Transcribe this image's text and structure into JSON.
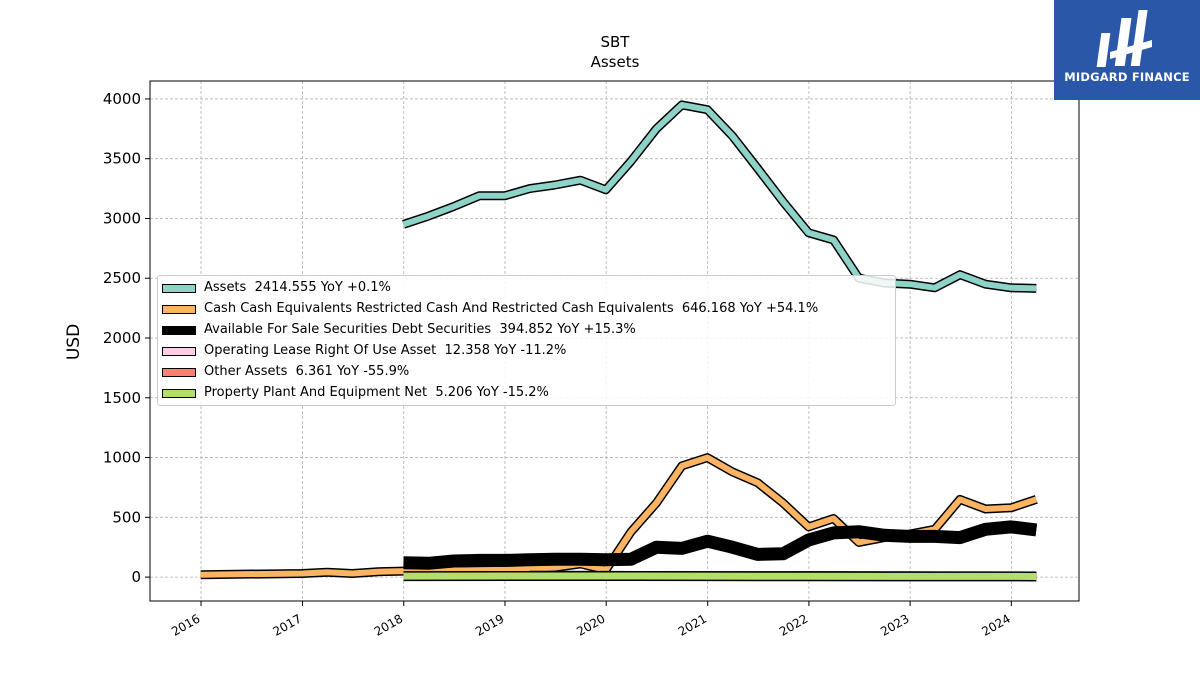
{
  "chart_data": {
    "type": "line",
    "title": "SBT",
    "subtitle": "Assets",
    "ylabel": "USD",
    "xlabel": "",
    "ylim": [
      -200,
      4150
    ],
    "xlim": [
      "2015-07-01",
      "2024-09-01"
    ],
    "yticks": [
      0,
      500,
      1000,
      1500,
      2000,
      2500,
      3000,
      3500,
      4000
    ],
    "xticks": [
      "2016",
      "2017",
      "2018",
      "2019",
      "2020",
      "2021",
      "2022",
      "2023",
      "2024"
    ],
    "grid": true,
    "legend_position": "center-left",
    "series": [
      {
        "name": "Assets",
        "legend": "Assets  2414.555 YoY +0.1%",
        "color": "#8dd3c7",
        "width": 6,
        "x": [
          "2017-12-31",
          "2018-03-31",
          "2018-06-30",
          "2018-09-30",
          "2018-12-31",
          "2019-03-31",
          "2019-06-30",
          "2019-09-30",
          "2019-12-31",
          "2020-03-31",
          "2020-06-30",
          "2020-09-30",
          "2020-12-31",
          "2021-03-31",
          "2021-06-30",
          "2021-09-30",
          "2021-12-31",
          "2022-03-31",
          "2022-06-30",
          "2022-09-30",
          "2022-12-31",
          "2023-03-31",
          "2023-06-30",
          "2023-09-30",
          "2023-12-31",
          "2024-03-31"
        ],
        "y": [
          2950,
          3020,
          3100,
          3190,
          3190,
          3250,
          3280,
          3320,
          3240,
          3480,
          3750,
          3950,
          3910,
          3690,
          3420,
          3140,
          2880,
          2820,
          2500,
          2460,
          2450,
          2420,
          2530,
          2450,
          2420,
          2415
        ]
      },
      {
        "name": "Cash Cash Equivalents Restricted Cash And Restricted Cash Equivalents",
        "legend": "Cash Cash Equivalents Restricted Cash And Restricted Cash Equivalents  646.168 YoY +54.1%",
        "color": "#fdb462",
        "width": 6,
        "x": [
          "2015-12-31",
          "2016-12-31",
          "2017-03-31",
          "2017-06-30",
          "2017-09-30",
          "2017-12-31",
          "2018-12-31",
          "2019-06-30",
          "2019-09-30",
          "2019-12-31",
          "2020-03-31",
          "2020-06-30",
          "2020-09-30",
          "2020-12-31",
          "2021-03-31",
          "2021-06-30",
          "2021-09-30",
          "2021-12-31",
          "2022-03-31",
          "2022-06-30",
          "2022-09-30",
          "2022-12-31",
          "2023-03-31",
          "2023-06-30",
          "2023-09-30",
          "2023-12-31",
          "2024-03-31"
        ],
        "y": [
          20,
          30,
          40,
          30,
          45,
          50,
          60,
          80,
          110,
          60,
          380,
          620,
          930,
          1000,
          880,
          790,
          620,
          420,
          490,
          290,
          330,
          360,
          400,
          650,
          570,
          580,
          650
        ]
      },
      {
        "name": "Available For Sale Securities Debt Securities",
        "legend": "Available For Sale Securities Debt Securities  394.852 YoY +15.3%",
        "color": "#000000",
        "width": 10,
        "x": [
          "2017-12-31",
          "2018-03-31",
          "2018-06-30",
          "2018-09-30",
          "2018-12-31",
          "2019-03-31",
          "2019-06-30",
          "2019-09-30",
          "2019-12-31",
          "2020-03-31",
          "2020-06-30",
          "2020-09-30",
          "2020-12-31",
          "2021-03-31",
          "2021-06-30",
          "2021-09-30",
          "2021-12-31",
          "2022-03-31",
          "2022-06-30",
          "2022-09-30",
          "2022-12-31",
          "2023-03-31",
          "2023-06-30",
          "2023-09-30",
          "2023-12-31",
          "2024-03-31"
        ],
        "y": [
          120,
          115,
          135,
          140,
          140,
          145,
          150,
          150,
          145,
          150,
          250,
          240,
          300,
          250,
          190,
          195,
          310,
          370,
          380,
          350,
          340,
          340,
          330,
          400,
          420,
          395
        ]
      },
      {
        "name": "Operating Lease Right Of Use Asset",
        "legend": "Operating Lease Right Of Use Asset  12.358 YoY -11.2%",
        "color": "#fccde5",
        "width": 5,
        "x": [
          "2019-03-31",
          "2019-12-31",
          "2020-12-31",
          "2021-12-31",
          "2022-12-31",
          "2023-12-31",
          "2024-03-31"
        ],
        "y": [
          20,
          18,
          16,
          15,
          14,
          13,
          12
        ]
      },
      {
        "name": "Other Assets",
        "legend": "Other Assets  6.361 YoY -55.9%",
        "color": "#fb8072",
        "width": 5,
        "x": [
          "2017-12-31",
          "2019-12-31",
          "2020-12-31",
          "2021-12-31",
          "2022-12-31",
          "2023-12-31",
          "2024-03-31"
        ],
        "y": [
          10,
          12,
          14,
          15,
          14,
          10,
          6
        ]
      },
      {
        "name": "Property Plant And Equipment Net",
        "legend": "Property Plant And Equipment Net  5.206 YoY -15.2%",
        "color": "#b3de69",
        "width": 7,
        "x": [
          "2017-12-31",
          "2019-12-31",
          "2020-12-31",
          "2021-12-31",
          "2022-12-31",
          "2023-12-31",
          "2024-03-31"
        ],
        "y": [
          8,
          9,
          8,
          7,
          6,
          6,
          5
        ]
      }
    ]
  },
  "logo": {
    "text": "MIDGARD FINANCE",
    "color": "#2a57a8"
  }
}
